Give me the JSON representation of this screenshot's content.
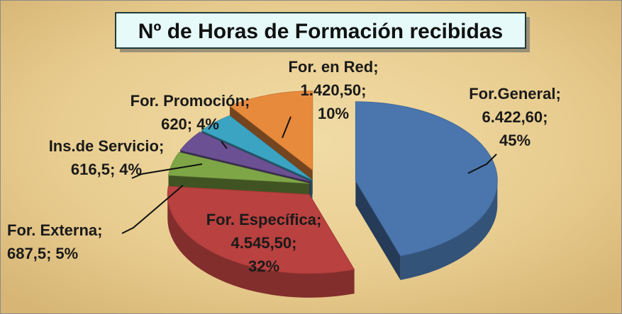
{
  "chart_data": {
    "type": "pie",
    "title": "Nº de Horas de Formación recibidas",
    "categories": [
      "For.General",
      "For. Específica",
      "For. Externa",
      "Ins.de Servicio",
      "For. Promoción",
      "For. en Red"
    ],
    "values": [
      6422.6,
      4545.5,
      687.5,
      616.5,
      620,
      1420.5
    ],
    "value_labels": [
      "6.422,60",
      "4.545,50",
      "687,5",
      "616,5",
      "620",
      "1.420,50"
    ],
    "percentages": [
      45,
      32,
      5,
      4,
      4,
      10
    ],
    "percent_labels": [
      "45%",
      "32%",
      "5%",
      "4%",
      "4%",
      "10%"
    ],
    "label_separator": ";",
    "colors": [
      "#4a76ad",
      "#b9413f",
      "#7fa646",
      "#6b5193",
      "#3ba4c2",
      "#e88a3c"
    ],
    "3d": true
  }
}
